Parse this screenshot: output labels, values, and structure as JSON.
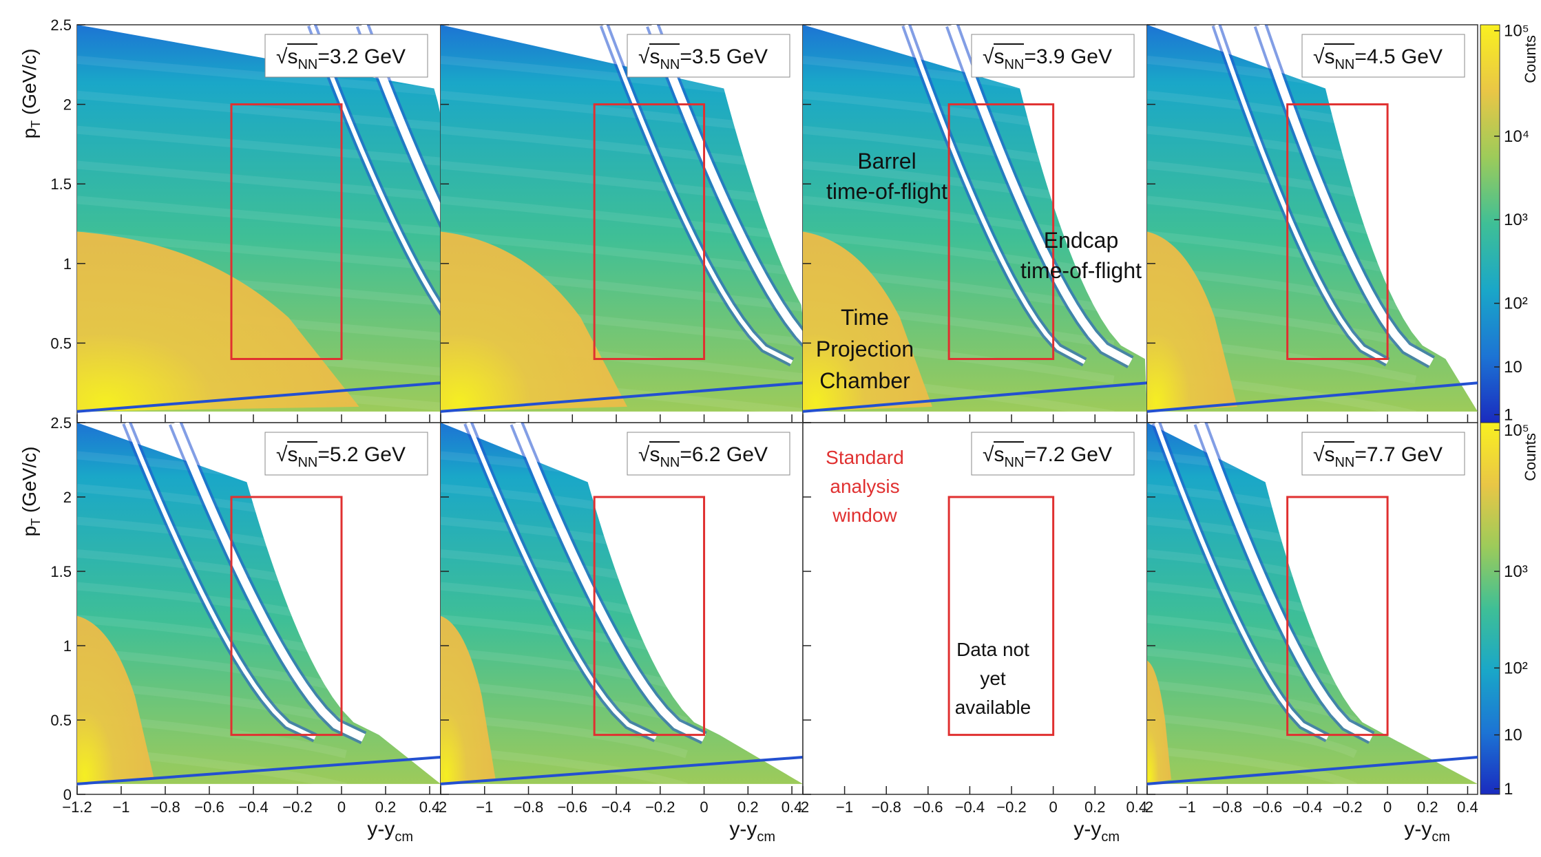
{
  "chart_data": {
    "type": "heatmap",
    "layout": "2x4 grid of panels",
    "xlabel": "y-y_cm",
    "ylabel": "p_T (GeV/c)",
    "xlim": [
      -1.2,
      0.45
    ],
    "ylim": [
      0,
      2.5
    ],
    "x_ticks": [
      "−1.2",
      "−1",
      "−0.8",
      "−0.6",
      "−0.4",
      "−0.2",
      "0",
      "0.2",
      "0.4"
    ],
    "y_ticks": [
      "0",
      "0.5",
      "1",
      "1.5",
      "2",
      "2.5"
    ],
    "x_ticks_truncated": [
      ".2",
      "−1",
      "−0.8",
      "−0.6",
      "−0.4",
      "−0.2",
      "0",
      "0.2",
      "0.4"
    ],
    "x_ticks_compact": [
      ".2",
      "−1",
      "−0.8",
      "−0.6",
      "−0.4",
      "−0.2",
      "0",
      "0.2",
      "0.4"
    ],
    "colorbar": {
      "label": "Counts",
      "scale": "log",
      "top_ticks": [
        "1",
        "10",
        "10²",
        "10³",
        "10⁴",
        "10⁵"
      ],
      "bottom_ticks": [
        "1",
        "10",
        "10²",
        "10³",
        "10⁵"
      ],
      "colors": [
        "#1a2bbf",
        "#1c74d4",
        "#1aa7c8",
        "#3fbf96",
        "#9dcb5a",
        "#e9c646",
        "#f9f020"
      ]
    },
    "analysis_window": {
      "x": [
        -0.5,
        0
      ],
      "y": [
        0.4,
        2.0
      ],
      "color": "#e03030"
    },
    "panels": [
      {
        "energy": "3.2 GeV",
        "has_data": true,
        "tpc_reach": 1.28,
        "tpc_top": 1.2,
        "tof_band1": 0.22,
        "tof_band2": 0.45
      },
      {
        "energy": "3.5 GeV",
        "has_data": true,
        "tpc_reach": 0.85,
        "tpc_top": 1.2,
        "tof_band1": -0.1,
        "tof_band2": 0.12
      },
      {
        "energy": "3.9 GeV",
        "has_data": true,
        "tpc_reach": 0.62,
        "tpc_top": 1.2,
        "tof_band1": -0.35,
        "tof_band2": -0.13
      },
      {
        "energy": "4.5 GeV",
        "has_data": true,
        "tpc_reach": 0.45,
        "tpc_top": 1.2,
        "tof_band1": -0.5,
        "tof_band2": -0.28
      },
      {
        "energy": "5.2 GeV",
        "has_data": true,
        "tpc_reach": 0.35,
        "tpc_top": 1.2,
        "tof_band1": -0.62,
        "tof_band2": -0.4
      },
      {
        "energy": "6.2 GeV",
        "has_data": true,
        "tpc_reach": 0.25,
        "tpc_top": 1.2,
        "tof_band1": -0.72,
        "tof_band2": -0.5
      },
      {
        "energy": "7.2 GeV",
        "has_data": false,
        "tpc_reach": 0,
        "tpc_top": 0,
        "tof_band1": 0,
        "tof_band2": 0
      },
      {
        "energy": "7.7 GeV",
        "has_data": true,
        "tpc_reach": 0.12,
        "tpc_top": 0.9,
        "tof_band1": -0.8,
        "tof_band2": -0.58
      }
    ],
    "energy_prefix": "√s",
    "energy_subscript": "NN",
    "annotations": {
      "barrel": [
        "Barrel",
        "time-of-flight"
      ],
      "endcap": [
        "Endcap",
        "time-of-flight"
      ],
      "tpc": [
        "Time",
        "Projection",
        "Chamber"
      ],
      "standard_window": [
        "Standard",
        "analysis",
        "window"
      ],
      "no_data": [
        "Data not",
        "yet",
        "available"
      ]
    }
  }
}
